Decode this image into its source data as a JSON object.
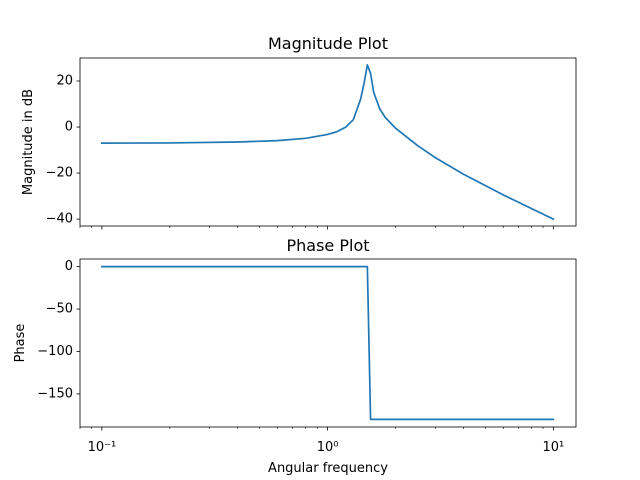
{
  "colors": {
    "series": "#1f77b4",
    "axes": "#000000",
    "background": "#ffffff"
  },
  "chart_data": [
    {
      "type": "line",
      "title": "Magnitude Plot",
      "xlabel": "",
      "ylabel": "Magnitude in dB",
      "xscale": "log",
      "xlim": [
        0.08,
        12.6
      ],
      "ylim": [
        -43,
        30
      ],
      "yticks": [
        20,
        0,
        -20,
        -40
      ],
      "ytick_labels": [
        "20",
        "0",
        "−20",
        "−40"
      ],
      "grid": false,
      "series": [
        {
          "name": "magnitude",
          "x": [
            0.1,
            0.2,
            0.4,
            0.6,
            0.8,
            1.0,
            1.1,
            1.2,
            1.3,
            1.4,
            1.45,
            1.5,
            1.55,
            1.6,
            1.7,
            1.8,
            2.0,
            2.5,
            3.0,
            4.0,
            6.0,
            10.0
          ],
          "y": [
            -7,
            -6.9,
            -6.5,
            -5.9,
            -4.9,
            -3.2,
            -2,
            -0.1,
            3.2,
            12.1,
            19,
            27,
            23.3,
            15.1,
            8,
            4.2,
            -0.5,
            -8,
            -13.3,
            -20.5,
            -29.5,
            -40
          ]
        }
      ]
    },
    {
      "type": "line",
      "title": "Phase Plot",
      "xlabel": "Angular frequency",
      "ylabel": "Phase",
      "xscale": "log",
      "xlim": [
        0.08,
        12.6
      ],
      "ylim": [
        -189,
        9
      ],
      "yticks": [
        0,
        -50,
        -100,
        -150
      ],
      "ytick_labels": [
        "0",
        "−50",
        "−100",
        "−150"
      ],
      "xtick_labels": [
        "10⁻¹",
        "10⁰",
        "10¹"
      ],
      "grid": false,
      "series": [
        {
          "name": "phase",
          "x": [
            0.1,
            0.5,
            1.0,
            1.45,
            1.5,
            1.55,
            2.0,
            5.0,
            10.0
          ],
          "y": [
            0,
            0,
            0,
            0,
            0,
            -180,
            -180,
            -180,
            -180
          ]
        }
      ]
    }
  ]
}
